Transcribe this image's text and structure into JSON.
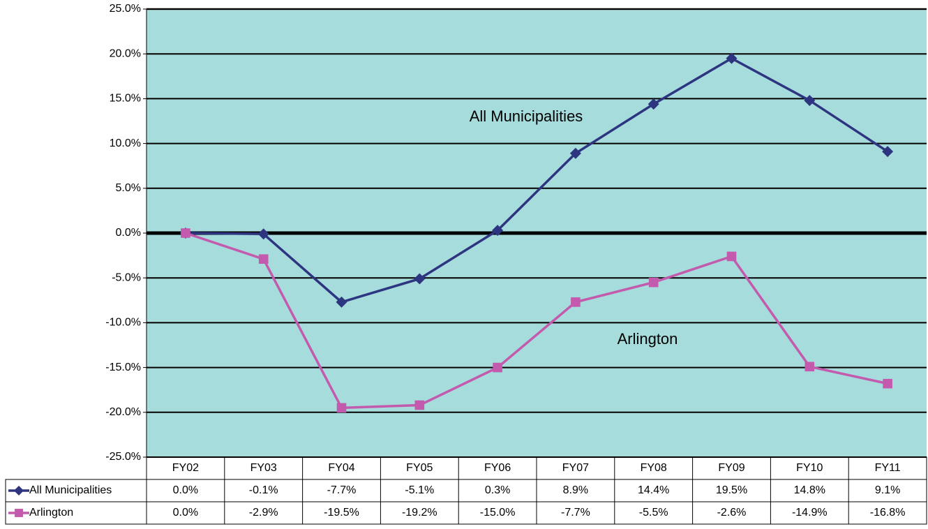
{
  "chart_data": {
    "type": "line",
    "categories": [
      "FY02",
      "FY03",
      "FY04",
      "FY05",
      "FY06",
      "FY07",
      "FY08",
      "FY09",
      "FY10",
      "FY11"
    ],
    "series": [
      {
        "name": "All Municipalities",
        "color": "#2e3580",
        "marker": "diamond",
        "values": [
          0.0,
          -0.1,
          -7.7,
          -5.1,
          0.3,
          8.9,
          14.4,
          19.5,
          14.8,
          9.1
        ],
        "value_labels": [
          "0.0%",
          "-0.1%",
          "-7.7%",
          "-5.1%",
          "0.3%",
          "8.9%",
          "14.4%",
          "19.5%",
          "14.8%",
          "9.1%"
        ]
      },
      {
        "name": "Arlington",
        "color": "#c45aad",
        "marker": "square",
        "values": [
          0.0,
          -2.9,
          -19.5,
          -19.2,
          -15.0,
          -7.7,
          -5.5,
          -2.6,
          -14.9,
          -16.8
        ],
        "value_labels": [
          "0.0%",
          "-2.9%",
          "-19.5%",
          "-19.2%",
          "-15.0%",
          "-7.7%",
          "-5.5%",
          "-2.6%",
          "-14.9%",
          "-16.8%"
        ]
      }
    ],
    "ylim": [
      -25,
      25
    ],
    "yticks": [
      {
        "value": -25,
        "label": "-25.0%"
      },
      {
        "value": -20,
        "label": "-20.0%"
      },
      {
        "value": -15,
        "label": "-15.0%"
      },
      {
        "value": -10,
        "label": "-10.0%"
      },
      {
        "value": -5,
        "label": "-5.0%"
      },
      {
        "value": 0,
        "label": "0.0%"
      },
      {
        "value": 5,
        "label": "5.0%"
      },
      {
        "value": 10,
        "label": "10.0%"
      },
      {
        "value": 15,
        "label": "15.0%"
      },
      {
        "value": 20,
        "label": "20.0%"
      },
      {
        "value": 25,
        "label": "25.0%"
      }
    ],
    "grid": true,
    "plot_background": "#a6dcdc",
    "data_table": true
  }
}
